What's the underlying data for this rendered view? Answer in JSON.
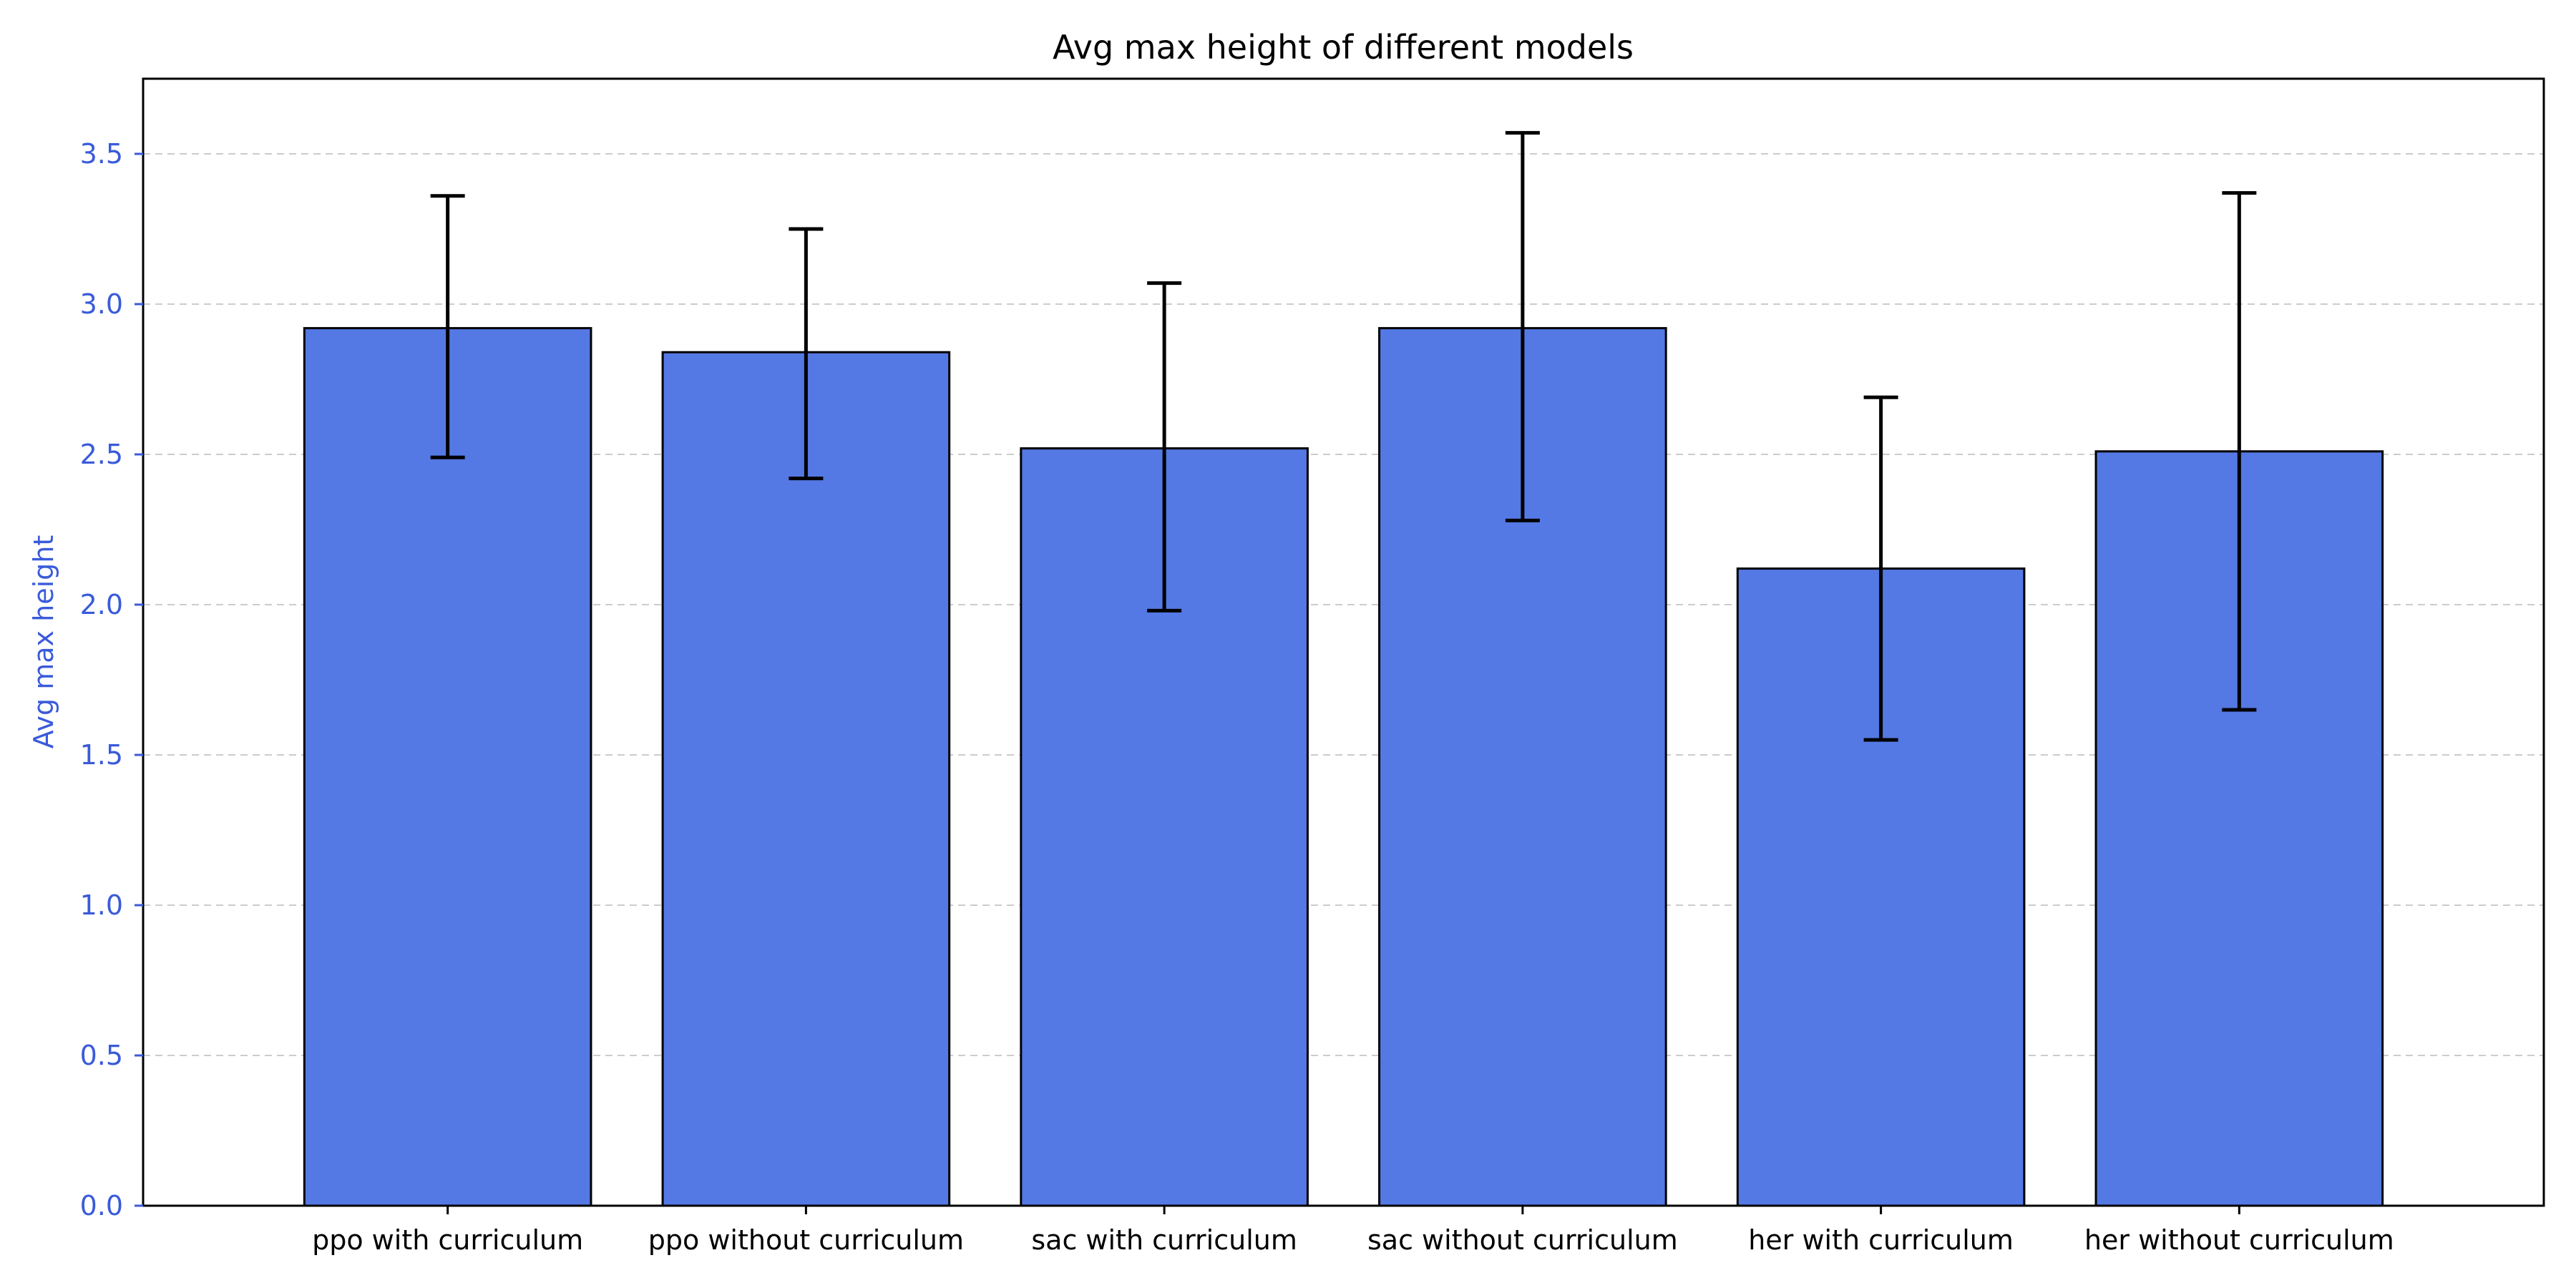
{
  "chart_data": {
    "type": "bar",
    "title": "Avg max height of different models",
    "xlabel": "",
    "ylabel": "Avg max height",
    "categories": [
      "ppo with curriculum",
      "ppo without curriculum",
      "sac with curriculum",
      "sac without curriculum",
      "her with curriculum",
      "her without curriculum"
    ],
    "values": [
      2.92,
      2.84,
      2.52,
      2.92,
      2.12,
      2.51
    ],
    "error_low": [
      2.49,
      2.42,
      1.98,
      2.28,
      1.55,
      1.65
    ],
    "error_high": [
      3.36,
      3.25,
      3.07,
      3.57,
      2.69,
      3.37
    ],
    "ylim": [
      0,
      3.75
    ],
    "yticks": [
      "0.0",
      "0.5",
      "1.0",
      "1.5",
      "2.0",
      "2.5",
      "3.0",
      "3.5"
    ],
    "grid": "horizontal dashed",
    "bar_color": "#5479E4",
    "bar_edge_color": "#000000",
    "error_bar_color": "#000000",
    "axis_label_color": "#3A5BD9"
  }
}
